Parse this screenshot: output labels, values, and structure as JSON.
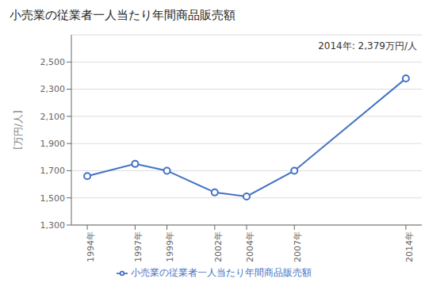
{
  "chart_data": {
    "type": "line",
    "title": "小売業の従業者一人当たり年間商品販売額",
    "ylabel": "[万円/人]",
    "annotation": "2014年: 2,379万円/人",
    "x": [
      1994,
      1997,
      1999,
      2002,
      2004,
      2007,
      2014
    ],
    "series": [
      {
        "name": "小売業の従業者一人当たり年間商品販売額",
        "color": "#4472C4",
        "values": [
          1660,
          1750,
          1700,
          1540,
          1510,
          1700,
          2379
        ],
        "marker": "o",
        "line_style": "solid"
      }
    ],
    "xlim": [
      1993,
      2015
    ],
    "xticks": [
      {
        "value": 1994,
        "label": "1994年"
      },
      {
        "value": 1997,
        "label": "1997年"
      },
      {
        "value": 1999,
        "label": "1999年"
      },
      {
        "value": 2002,
        "label": "2002年"
      },
      {
        "value": 2004,
        "label": "2004年"
      },
      {
        "value": 2007,
        "label": "2007年"
      },
      {
        "value": 2014,
        "label": "2014年"
      }
    ],
    "ylim": [
      1300,
      2700
    ],
    "yticks": [
      {
        "value": 1300,
        "label": "1,300"
      },
      {
        "value": 1500,
        "label": "1,500"
      },
      {
        "value": 1700,
        "label": "1,700"
      },
      {
        "value": 1900,
        "label": "1,900"
      },
      {
        "value": 2100,
        "label": "2,100"
      },
      {
        "value": 2300,
        "label": "2,300"
      },
      {
        "value": 2500,
        "label": "2,500"
      }
    ],
    "grid": "y",
    "legend": "bottom"
  }
}
